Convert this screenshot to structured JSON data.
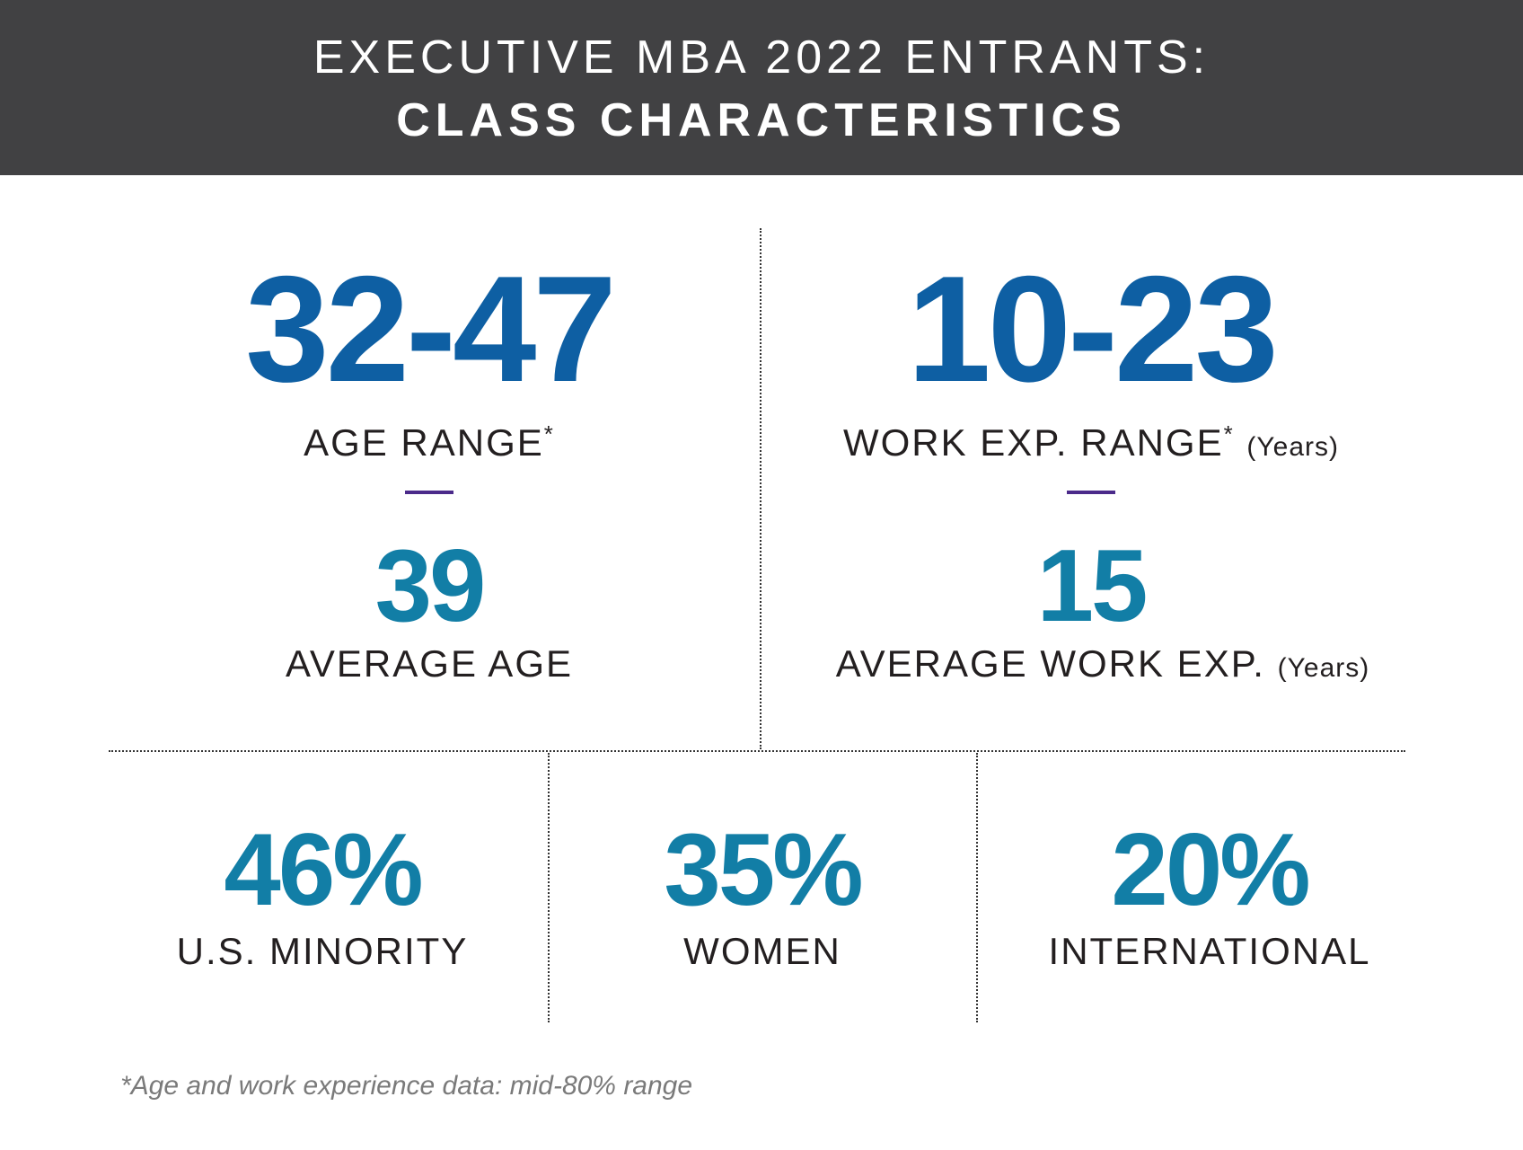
{
  "header": {
    "line1": "EXECUTIVE MBA 2022 ENTRANTS:",
    "line2": "CLASS CHARACTERISTICS"
  },
  "age": {
    "range": "32-47",
    "range_label": "AGE RANGE",
    "range_mark": "*",
    "average": "39",
    "average_label": "AVERAGE AGE"
  },
  "work": {
    "range": "10-23",
    "range_label": "WORK EXP. RANGE",
    "range_mark": "*",
    "range_unit": "(Years)",
    "average": "15",
    "average_label": "AVERAGE WORK EXP.",
    "average_unit": "(Years)"
  },
  "stats": [
    {
      "value": "46%",
      "label": "U.S. MINORITY"
    },
    {
      "value": "35%",
      "label": "WOMEN"
    },
    {
      "value": "20%",
      "label": "INTERNATIONAL"
    }
  ],
  "footnote": "*Age and work experience data: mid-80% range",
  "colors": {
    "header_bg": "#414143",
    "range_blue": "#0e5fa3",
    "average_teal": "#127ea6",
    "divider_purple": "#4b2a8a"
  }
}
